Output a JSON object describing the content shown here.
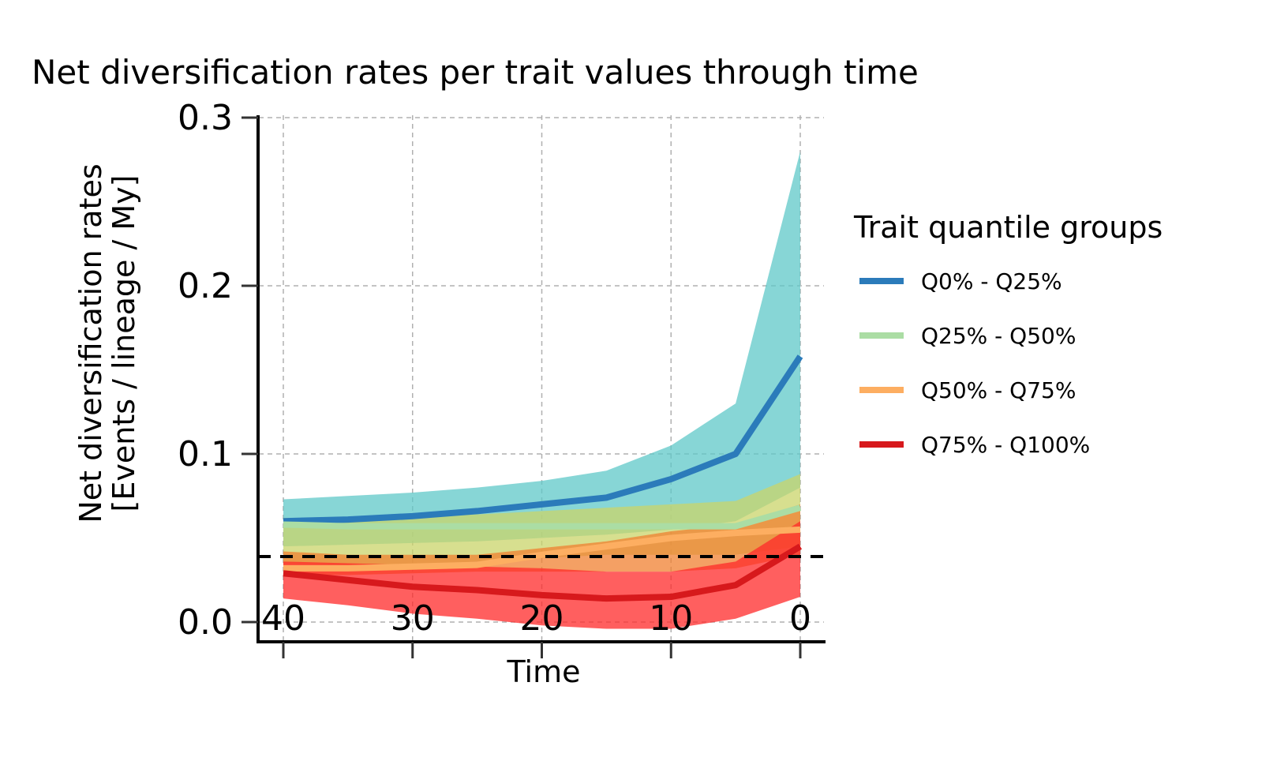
{
  "chart_data": {
    "type": "line",
    "title": "Net diversification rates per trait values through time",
    "xlabel": "Time",
    "ylabel_lines": [
      "Net diversification rates",
      "[Events / lineage / My]"
    ],
    "xlim": [
      42,
      -2
    ],
    "ylim": [
      -0.012,
      0.3
    ],
    "xticks": [
      40,
      30,
      20,
      10,
      0
    ],
    "xtick_labels": [
      "40",
      "30",
      "20",
      "10",
      "0"
    ],
    "yticks": [
      0.0,
      0.1,
      0.2,
      0.3
    ],
    "ytick_labels": [
      "0.0",
      "0.1",
      "0.2",
      "0.3"
    ],
    "grid": true,
    "reference_line": {
      "y": 0,
      "style": "dashed",
      "color": "#000000"
    },
    "x": [
      40,
      35,
      30,
      25,
      20,
      15,
      10,
      5,
      0
    ],
    "legend": {
      "title": "Trait quantile groups",
      "placement": "right"
    },
    "series": [
      {
        "name": "Q0% - Q25%",
        "color": "#2b7bba",
        "band_color": "#5fc8c8",
        "values": [
          0.06,
          0.061,
          0.063,
          0.066,
          0.07,
          0.074,
          0.085,
          0.1,
          0.158
        ],
        "band_low": [
          0.045,
          0.046,
          0.047,
          0.048,
          0.05,
          0.052,
          0.055,
          0.06,
          0.08
        ],
        "band_high": [
          0.073,
          0.075,
          0.077,
          0.08,
          0.084,
          0.09,
          0.105,
          0.13,
          0.28
        ]
      },
      {
        "name": "Q25% - Q50%",
        "color": "#abdda4",
        "band_color": "#c9d46a",
        "values": [
          0.058,
          0.057,
          0.057,
          0.057,
          0.057,
          0.057,
          0.057,
          0.057,
          0.068
        ],
        "band_low": [
          0.035,
          0.034,
          0.034,
          0.036,
          0.038,
          0.04,
          0.04,
          0.04,
          0.045
        ],
        "band_high": [
          0.062,
          0.062,
          0.063,
          0.064,
          0.066,
          0.068,
          0.07,
          0.072,
          0.088
        ]
      },
      {
        "name": "Q50% - Q75%",
        "color": "#fdae61",
        "band_color": "#f08030",
        "values": [
          0.032,
          0.032,
          0.033,
          0.034,
          0.04,
          0.045,
          0.05,
          0.053,
          0.055
        ],
        "band_low": [
          0.028,
          0.028,
          0.029,
          0.03,
          0.03,
          0.03,
          0.03,
          0.032,
          0.04
        ],
        "band_high": [
          0.042,
          0.04,
          0.04,
          0.04,
          0.044,
          0.048,
          0.054,
          0.058,
          0.07
        ]
      },
      {
        "name": "Q75% - Q100%",
        "color": "#d7191c",
        "band_color": "#ff2a2a",
        "values": [
          0.029,
          0.025,
          0.021,
          0.019,
          0.016,
          0.014,
          0.015,
          0.022,
          0.045
        ],
        "band_low": [
          0.014,
          0.01,
          0.005,
          0.002,
          -0.002,
          -0.004,
          -0.004,
          0.002,
          0.015
        ],
        "band_high": [
          0.036,
          0.035,
          0.034,
          0.033,
          0.032,
          0.03,
          0.03,
          0.036,
          0.06
        ]
      }
    ]
  }
}
